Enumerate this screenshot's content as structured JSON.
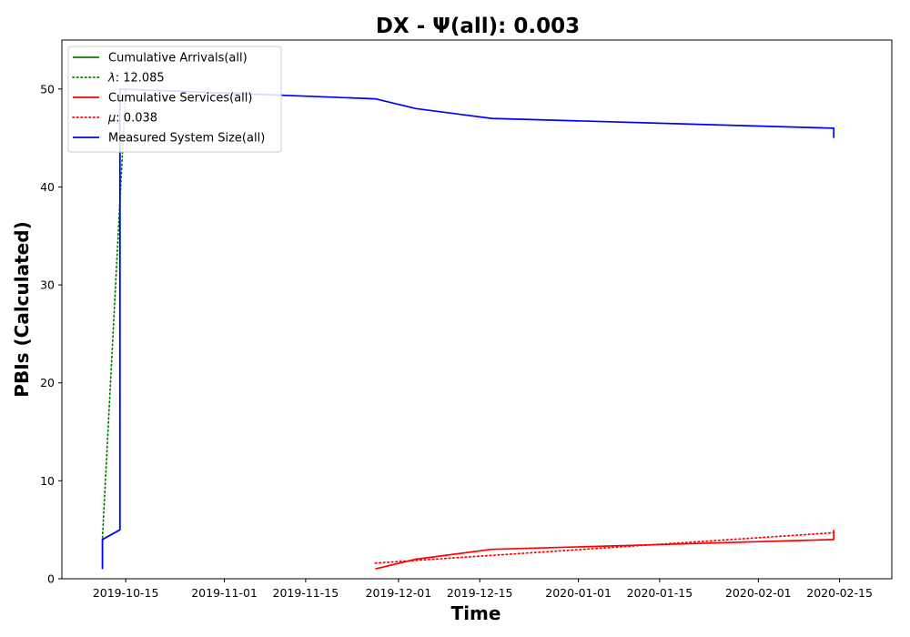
{
  "chart_data": {
    "type": "line",
    "title": "DX -  Ψ(all): 0.003",
    "xlabel": "Time",
    "ylabel": "PBIs (Calculated)",
    "x_type": "date",
    "xlim": [
      "2019-10-04",
      "2020-02-24"
    ],
    "ylim": [
      0,
      55
    ],
    "x_ticks": [
      {
        "date": "2019-10-15",
        "label": "2019-10-15"
      },
      {
        "date": "2019-11-01",
        "label": "2019-11-01"
      },
      {
        "date": "2019-11-15",
        "label": "2019-11-15"
      },
      {
        "date": "2019-12-01",
        "label": "2019-12-01"
      },
      {
        "date": "2019-12-15",
        "label": "2019-12-15"
      },
      {
        "date": "2020-01-01",
        "label": "2020-01-01"
      },
      {
        "date": "2020-01-15",
        "label": "2020-01-15"
      },
      {
        "date": "2020-02-01",
        "label": "2020-02-01"
      },
      {
        "date": "2020-02-15",
        "label": "2020-02-15"
      }
    ],
    "y_ticks": [
      0,
      10,
      20,
      30,
      40,
      50
    ],
    "grid": false,
    "legend_position": "upper-left",
    "series": [
      {
        "name": "Cumulative Arrivals(all)",
        "color": "#008000",
        "style": "solid",
        "points": [
          [
            "2019-10-11",
            1
          ],
          [
            "2019-10-11",
            4
          ],
          [
            "2019-10-14",
            5
          ],
          [
            "2019-10-14",
            50
          ]
        ]
      },
      {
        "name": "λ: 12.085",
        "legend_prefix": "λ",
        "legend_suffix": ": 12.085",
        "color": "#008000",
        "style": "dotted",
        "points": [
          [
            "2019-10-11",
            4.2
          ],
          [
            "2019-10-15",
            50
          ]
        ]
      },
      {
        "name": "Cumulative Services(all)",
        "color": "#ff0000",
        "style": "solid",
        "points": [
          [
            "2019-11-27",
            1
          ],
          [
            "2019-12-04",
            2
          ],
          [
            "2019-12-17",
            3
          ],
          [
            "2020-02-14",
            4
          ],
          [
            "2020-02-14",
            5
          ]
        ]
      },
      {
        "name": "μ: 0.038",
        "legend_prefix": "μ",
        "legend_suffix": ": 0.038",
        "color": "#ff0000",
        "style": "dotted",
        "points": [
          [
            "2019-11-27",
            1.6
          ],
          [
            "2020-02-14",
            4.7
          ]
        ]
      },
      {
        "name": "Measured System Size(all)",
        "color": "#0000ff",
        "style": "solid",
        "points": [
          [
            "2019-10-11",
            1
          ],
          [
            "2019-10-11",
            4
          ],
          [
            "2019-10-14",
            5
          ],
          [
            "2019-10-14",
            50
          ],
          [
            "2019-11-27",
            49
          ],
          [
            "2019-12-04",
            48
          ],
          [
            "2019-12-17",
            47
          ],
          [
            "2020-02-14",
            46
          ],
          [
            "2020-02-14",
            45
          ]
        ]
      }
    ]
  }
}
